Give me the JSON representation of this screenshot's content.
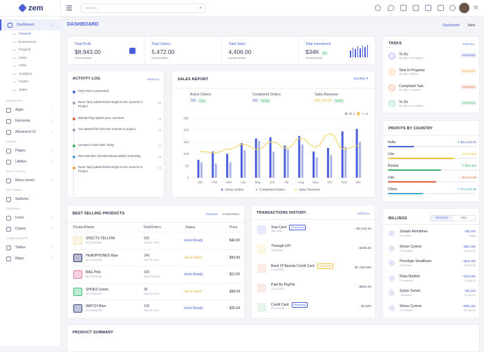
{
  "app": {
    "name": "zem",
    "search_placeholder": "Search..."
  },
  "sidebar": {
    "dashboard": "Dashboard",
    "dash_subs": [
      "General",
      "Ecommerce",
      "Projects",
      "HRM",
      "CRM",
      "Analytics",
      "Crypto",
      "Sales"
    ],
    "web_apps_label": "WEB APPS",
    "web_apps": [
      "Apps",
      "Elements",
      "Advanced UI"
    ],
    "pages_label": "PAGES",
    "pages": [
      "Pages",
      "Utilities"
    ],
    "multi_label": "MULTI LEVEL",
    "multi": [
      "Menu-levels"
    ],
    "settings_label": "SETTINGS",
    "settings": [
      "Switcher"
    ],
    "general_label": "GENERAL",
    "general": [
      "Icons",
      "Charts"
    ],
    "components_label": "COMPONENTS",
    "components": [
      "Tables",
      "Maps"
    ]
  },
  "header": {
    "title": "DASHBOARD",
    "breadcrumb": [
      "Dashboard",
      "Main"
    ]
  },
  "stats": [
    {
      "label": "Total Profit",
      "value": "$8,943.00",
      "sub": "Current Month"
    },
    {
      "label": "Total Orders",
      "value": "5,472.00",
      "sub": "Current Month"
    },
    {
      "label": "Total Sales",
      "value": "4,406.00",
      "sub": "Current Month"
    },
    {
      "label": "Total Investment",
      "value": "$34K",
      "badge": "9%",
      "sub": "Current Month"
    }
  ],
  "activity": {
    "title": "ACTIVITY LOG",
    "view_all": "VIEW ALL",
    "items": [
      {
        "text": "Kelly Perri commented",
        "time": "",
        "color": "#4a5fd9"
      },
      {
        "text": "Neon Tarly added Robin Bright to the Summit AI Project.",
        "time": "8h",
        "color": "#9aa0b4"
      },
      {
        "text": "Wanda Rag replied your comment",
        "time": "1d",
        "color": "#e0623b"
      },
      {
        "text": "You deleted file from the Summit AI project",
        "time": "1d",
        "color": "#9aa0b4"
      },
      {
        "text": "Created a New Task Today",
        "time": "2h",
        "color": "#3bb36b"
      },
      {
        "text": "New Member @mahendraraj added Yesterday",
        "time": "1d",
        "color": "#4aa5d9"
      },
      {
        "text": "Neon Tarly added Robin Bright to the Summit AI Project.",
        "time": "1d",
        "color": "#f2a33a"
      }
    ]
  },
  "sales": {
    "title": "SALES REPORT",
    "period": "Monthly",
    "kpis": [
      {
        "label": "Active Orders",
        "value": "106",
        "change": "+0%"
      },
      {
        "label": "Completed Orders",
        "value": "420",
        "change": "+0.0%"
      },
      {
        "label": "Sales Revenue",
        "value": "$32,124.00",
        "change": "+0.0%"
      }
    ]
  },
  "chart_data": {
    "type": "bar",
    "categories": [
      "Jan",
      "Feb",
      "Mar",
      "Apr",
      "May",
      "Jun",
      "Jul",
      "Aug",
      "Sep",
      "Oct",
      "Nov",
      "Dec"
    ],
    "ylim": [
      0,
      250
    ],
    "yticks": [
      0,
      50,
      100,
      150,
      200,
      250
    ],
    "series": [
      {
        "name": "Active Orders",
        "color": "#4a5fd9",
        "values": [
          75,
          110,
          100,
          145,
          165,
          170,
          135,
          175,
          110,
          125,
          195,
          205
        ]
      },
      {
        "name": "Completed Orders",
        "color": "#aab3e6",
        "values": [
          65,
          60,
          65,
          115,
          155,
          110,
          120,
          140,
          85,
          95,
          130,
          150
        ]
      },
      {
        "name": "Sales Revenue",
        "color": "#f2d86a",
        "values": [
          110,
          105,
          120,
          140,
          120,
          150,
          125,
          165,
          130,
          185,
          120,
          135
        ]
      }
    ],
    "legend": "bottom"
  },
  "tasks": {
    "title": "TASKS",
    "view_all": "VIEW ALL",
    "items": [
      {
        "name": "To Do",
        "meta": "2m ago • in progress",
        "date": "15-06-2022",
        "color": "#4a5fd9"
      },
      {
        "name": "Task In Progress",
        "meta": "2m ago • started",
        "date": "15-06-2022",
        "color": "#f2a33a"
      },
      {
        "name": "Completed Task",
        "meta": "2m ago • complete",
        "date": "15-06-2022",
        "color": "#e0623b"
      },
      {
        "name": "To Do",
        "meta": "2m ago • in progress",
        "date": "15-06-2022",
        "color": "#3bb36b"
      }
    ]
  },
  "profits": {
    "title": "PROFITS BY COUNTRY",
    "items": [
      {
        "country": "India",
        "value": "₹ $21,234.90",
        "status": "",
        "color": "#4a5fd9",
        "pct": 30
      },
      {
        "country": "Usa",
        "value": "Increased",
        "status": "",
        "color": "#f2c13a",
        "pct": 75
      },
      {
        "country": "Russia",
        "value": "₹ $56,256",
        "status": "",
        "color": "#3bb36b",
        "pct": 60
      },
      {
        "country": "Uae",
        "value": "↓ -$4,341.89",
        "status": "",
        "color": "#e0623b",
        "pct": 55
      },
      {
        "country": "China",
        "value": "₹ $72,234.50",
        "status": "",
        "color": "#4aa5d9",
        "pct": 40
      }
    ]
  },
  "best": {
    "title": "BEST SELLING PRODUCTS",
    "tabs": [
      "PENDING",
      "CONFIRMED"
    ],
    "columns": [
      "ProductName",
      "TotalOrders",
      "Status",
      "Price"
    ],
    "rows": [
      {
        "name": "SPECTS YELLOW",
        "id": "#01234841db",
        "orders": "520",
        "date": "July 24, 2020",
        "status": "stock Ready",
        "price": "$40.00",
        "st": "ready",
        "thumb": "#f4e1b5"
      },
      {
        "name": "HEADPHONES Blue",
        "id": "#01234841db",
        "orders": "240",
        "date": "Nov 16, 2021",
        "status": "out of stock",
        "price": "$39.89",
        "st": "out",
        "thumb": "#2f3a6e"
      },
      {
        "name": "BAG Pink",
        "id": "#01234841db",
        "orders": "600",
        "date": "April 18, 2020",
        "status": "stock Ready",
        "price": "$12.60",
        "st": "ready",
        "thumb": "#e57ba8"
      },
      {
        "name": "SHOES Green",
        "id": "#01234841db",
        "orders": "95",
        "date": "July 24, 2019",
        "status": "out of stock",
        "price": "$38.04",
        "st": "out",
        "thumb": "#3fbf7a"
      },
      {
        "name": "WATCH Blue",
        "id": "#01234841db",
        "orders": "120",
        "date": "Sep 26, 2020",
        "status": "stock Ready",
        "price": "$25.64",
        "st": "ready",
        "thumb": "#3e4e8c"
      }
    ]
  },
  "transactions": {
    "title": "TRANSACTIONS HISTORY",
    "view_all": "VIEW ALL",
    "items": [
      {
        "name": "Visa Card",
        "badge": "Processing",
        "meta": "Just Now",
        "amount": "- $2,145.00",
        "color": "#4a5fd9"
      },
      {
        "name": "Through UPI",
        "badge": "",
        "meta": "Yesterday",
        "amount": "- $465.00",
        "color": "#f2c13a"
      },
      {
        "name": "Bank Of Baroda Credit Card",
        "badge": "Completed",
        "meta": "17-04-2022",
        "amount": "$1,150.000",
        "color": "#e0623b"
      },
      {
        "name": "Paid By PayPal",
        "badge": "",
        "meta": "17-04-2022",
        "amount": "- $500.00",
        "color": "#e0623b"
      },
      {
        "name": "Credit Card",
        "badge": "Processing",
        "meta": "20-04-2022",
        "amount": "- $3,000",
        "color": "#3bb36b"
      }
    ]
  },
  "billings": {
    "title": "BILLINGS",
    "tabs": [
      "RECEIVED",
      "PAID"
    ],
    "items": [
      {
        "name": "Joseph Arimathea",
        "meta": "5 invoices",
        "amount": "+$5,000",
        "date": "Today"
      },
      {
        "name": "Simon Cyrene",
        "meta": "17 invoices",
        "amount": "+$85,400",
        "date": "20 Jan 22"
      },
      {
        "name": "Penelope Smallbone",
        "meta": "2 invoices",
        "amount": "+$25,400",
        "date": "20 Jan 22"
      },
      {
        "name": "Ruby Bartlett",
        "meta": "17 invoices",
        "amount": "+$49,250",
        "date": "11 Jan 22"
      },
      {
        "name": "Sylvia Trench",
        "meta": "7 invoices",
        "amount": "+$9,250",
        "date": "11 Jan 22"
      },
      {
        "name": "Simon Cyrene",
        "meta": "17 invoices",
        "amount": "+$85,400",
        "date": "20 Jan 22"
      }
    ]
  },
  "product_summary": {
    "title": "PRODUCT SUMMARY"
  }
}
